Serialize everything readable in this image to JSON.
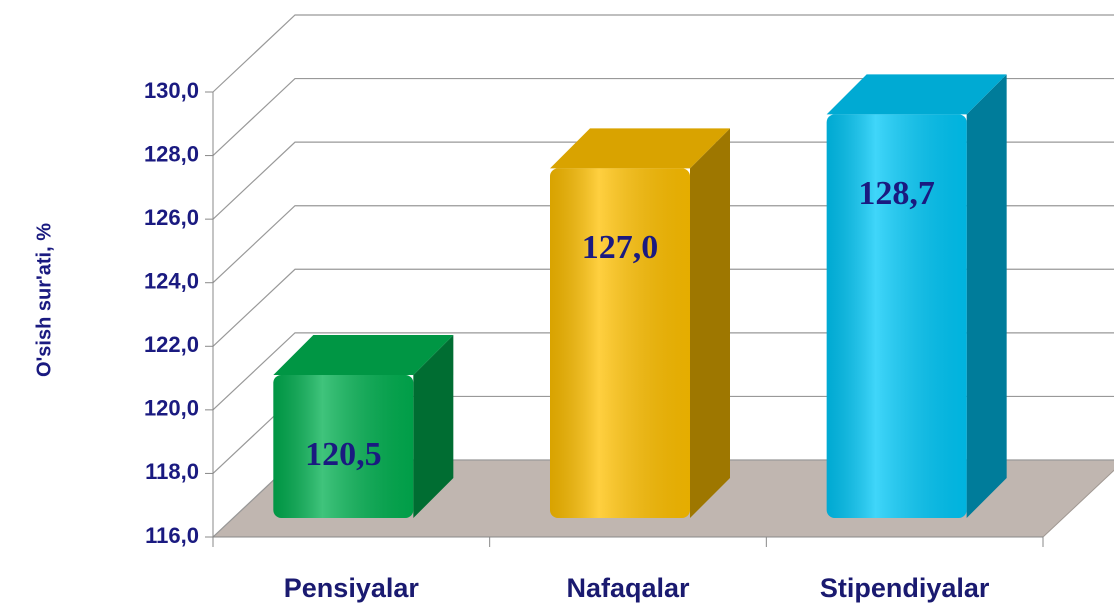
{
  "chart_data": {
    "type": "bar3d",
    "y_label": "O'sish sur'ati, %",
    "categories": [
      "Pensiyalar",
      "Nafaqalar",
      "Stipendiyalar"
    ],
    "values": [
      120.5,
      127.0,
      128.7
    ],
    "value_labels": [
      "120,5",
      "127,0",
      "128,7"
    ],
    "colors": [
      "#00b050",
      "#ffc000",
      "#00c8f8"
    ],
    "ylim": [
      116,
      130
    ],
    "yticks": [
      {
        "value": 116,
        "label": "116,0"
      },
      {
        "value": 118,
        "label": "118,0"
      },
      {
        "value": 120,
        "label": "120,0"
      },
      {
        "value": 122,
        "label": "122,0"
      },
      {
        "value": 124,
        "label": "124,0"
      },
      {
        "value": 126,
        "label": "126,0"
      },
      {
        "value": 128,
        "label": "128,0"
      },
      {
        "value": 130,
        "label": "130,0"
      }
    ],
    "grid": true
  }
}
